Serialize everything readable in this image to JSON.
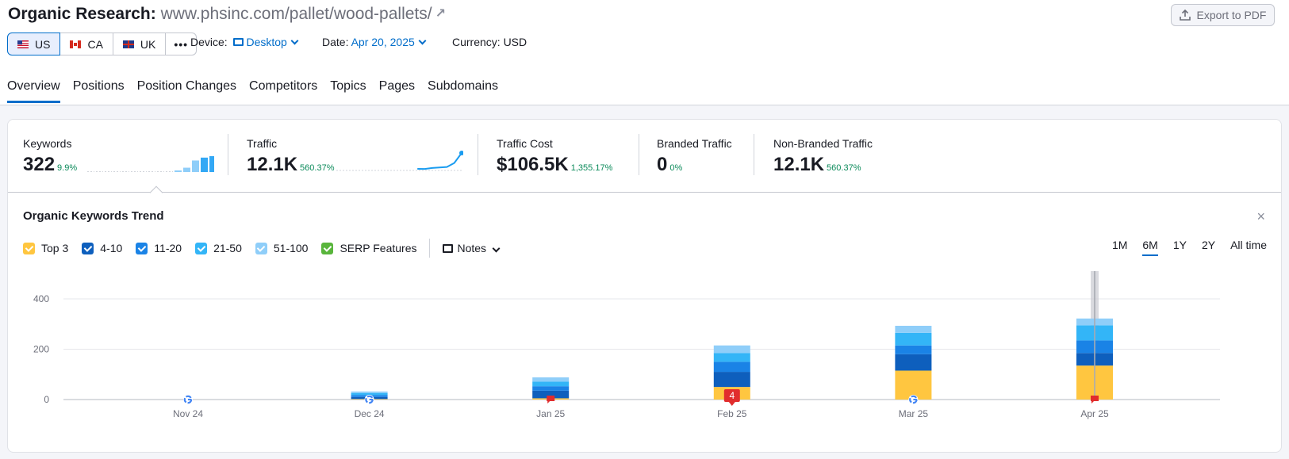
{
  "header": {
    "title_prefix": "Organic Research:",
    "domain": "www.phsinc.com/pallet/wood-pallets/",
    "export_label": "Export to PDF"
  },
  "countries": [
    {
      "code": "US",
      "active": true
    },
    {
      "code": "CA",
      "active": false
    },
    {
      "code": "UK",
      "active": false
    }
  ],
  "more_label": "•••",
  "filters": {
    "device_label": "Device:",
    "device_value": "Desktop",
    "date_label": "Date:",
    "date_value": "Apr 20, 2025",
    "currency": "Currency: USD"
  },
  "tabs": [
    "Overview",
    "Positions",
    "Position Changes",
    "Competitors",
    "Topics",
    "Pages",
    "Subdomains"
  ],
  "metrics": {
    "keywords": {
      "label": "Keywords",
      "value": "322",
      "delta": "9.9%"
    },
    "traffic": {
      "label": "Traffic",
      "value": "12.1K",
      "delta": "560.37%"
    },
    "traffic_cost": {
      "label": "Traffic Cost",
      "value": "$106.5K",
      "delta": "1,355.17%"
    },
    "branded": {
      "label": "Branded Traffic",
      "value": "0",
      "delta": "0%"
    },
    "non_branded": {
      "label": "Non-Branded Traffic",
      "value": "12.1K",
      "delta": "560.37%"
    }
  },
  "keywords_sparkline": [
    0,
    0,
    0,
    0,
    0,
    0,
    0,
    0,
    0,
    0,
    1,
    3,
    8,
    10,
    11
  ],
  "traffic_sparkline": [
    0,
    0,
    0,
    0,
    0,
    0,
    0,
    0,
    0,
    0,
    0,
    0,
    0.3,
    0.5,
    0.6,
    0.7,
    1.5,
    3.5
  ],
  "trend": {
    "title": "Organic Keywords Trend",
    "close": "×",
    "legend": [
      {
        "label": "Top 3",
        "color": "#ffc640"
      },
      {
        "label": "4-10",
        "color": "#0e5fbd"
      },
      {
        "label": "11-20",
        "color": "#1a83e6"
      },
      {
        "label": "21-50",
        "color": "#33b5f7"
      },
      {
        "label": "51-100",
        "color": "#8fcef9"
      },
      {
        "label": "SERP Features",
        "color": "#59b53c"
      }
    ],
    "notes_label": "Notes",
    "ranges": [
      {
        "label": "1M",
        "active": false
      },
      {
        "label": "6M",
        "active": true
      },
      {
        "label": "1Y",
        "active": false
      },
      {
        "label": "2Y",
        "active": false
      },
      {
        "label": "All time",
        "active": false
      }
    ]
  },
  "chart_data": {
    "type": "bar",
    "stacked": true,
    "categories": [
      "Nov 24",
      "Dec 24",
      "Jan 25",
      "Feb 25",
      "Mar 25",
      "Apr 25"
    ],
    "yticks": [
      0,
      200,
      400
    ],
    "ylim": [
      0,
      420
    ],
    "series": [
      {
        "name": "Top 3",
        "color": "#ffc640",
        "values": [
          0,
          2,
          5,
          50,
          115,
          135
        ]
      },
      {
        "name": "4-10",
        "color": "#0e5fbd",
        "values": [
          0,
          8,
          30,
          60,
          65,
          50
        ]
      },
      {
        "name": "11-20",
        "color": "#1a83e6",
        "values": [
          0,
          8,
          18,
          40,
          35,
          50
        ]
      },
      {
        "name": "21-50",
        "color": "#33b5f7",
        "values": [
          0,
          8,
          18,
          35,
          50,
          60
        ]
      },
      {
        "name": "51-100",
        "color": "#8fcef9",
        "values": [
          0,
          6,
          17,
          30,
          28,
          27
        ]
      }
    ],
    "note_flags": [
      {
        "index": 2,
        "label": ""
      },
      {
        "index": 3,
        "label": "4"
      },
      {
        "index": 5,
        "label": ""
      }
    ],
    "google_markers": [
      0,
      1,
      4
    ],
    "grid": true,
    "highlight_index": 5
  }
}
